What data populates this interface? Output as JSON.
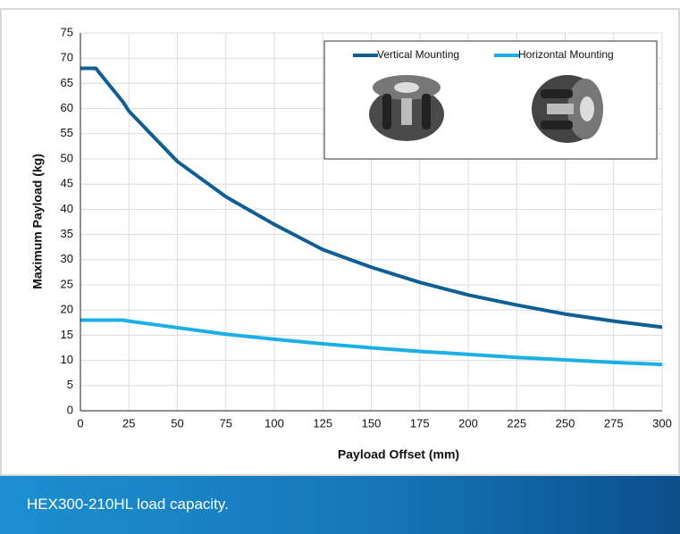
{
  "chart_data": {
    "type": "line",
    "xlabel": "Payload Offset (mm)",
    "ylabel": "Maximum Payload (kg)",
    "x": [
      0,
      8,
      10,
      22,
      25,
      50,
      75,
      100,
      125,
      150,
      175,
      200,
      225,
      250,
      275,
      300
    ],
    "series": [
      {
        "name": "Vertical Mounting",
        "color": "#0f5f94",
        "values": [
          68,
          68,
          67,
          61.3,
          59.5,
          49.5,
          42.5,
          37,
          32,
          28.5,
          25.5,
          23,
          21,
          19.2,
          17.8,
          16.6
        ]
      },
      {
        "name": "Horizontal Mounting",
        "color": "#1aafe6",
        "values": [
          18,
          18,
          18,
          18,
          17.8,
          16.5,
          15.2,
          14.2,
          13.3,
          12.5,
          11.8,
          11.2,
          10.6,
          10.1,
          9.6,
          9.2
        ]
      }
    ],
    "xlim": [
      0,
      300
    ],
    "xticks": [
      0,
      25,
      50,
      75,
      100,
      125,
      150,
      175,
      200,
      225,
      250,
      275,
      300
    ],
    "ylim": [
      0,
      75
    ],
    "yticks": [
      0,
      5,
      10,
      15,
      20,
      25,
      30,
      35,
      40,
      45,
      50,
      55,
      60,
      65,
      70,
      75
    ],
    "grid": true
  },
  "caption": "HEX300-210HL load capacity."
}
